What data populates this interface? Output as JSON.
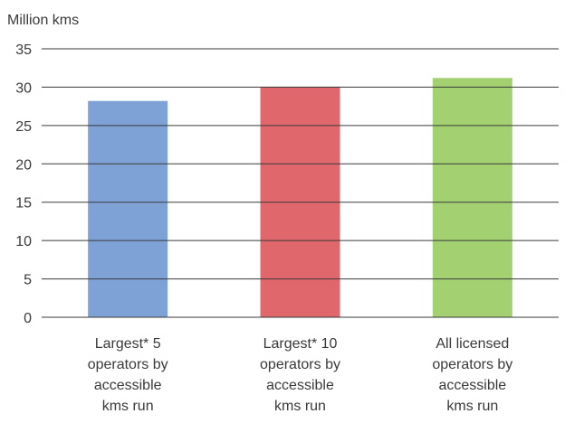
{
  "chart_data": {
    "type": "bar",
    "ylabel": "Million kms",
    "ylim": [
      0,
      35
    ],
    "yticks": [
      0,
      5,
      10,
      15,
      20,
      25,
      30,
      35
    ],
    "grid": true,
    "categories": [
      [
        "Largest* 5",
        "operators by",
        "accessible",
        "kms run"
      ],
      [
        "Largest* 10",
        "operators by",
        "accessible",
        "kms run"
      ],
      [
        "All licensed",
        "operators by",
        "accessible",
        "kms run"
      ]
    ],
    "values": [
      28.2,
      30.0,
      31.2
    ],
    "colors": [
      "#7ea1d6",
      "#e0686c",
      "#a3d071"
    ]
  }
}
